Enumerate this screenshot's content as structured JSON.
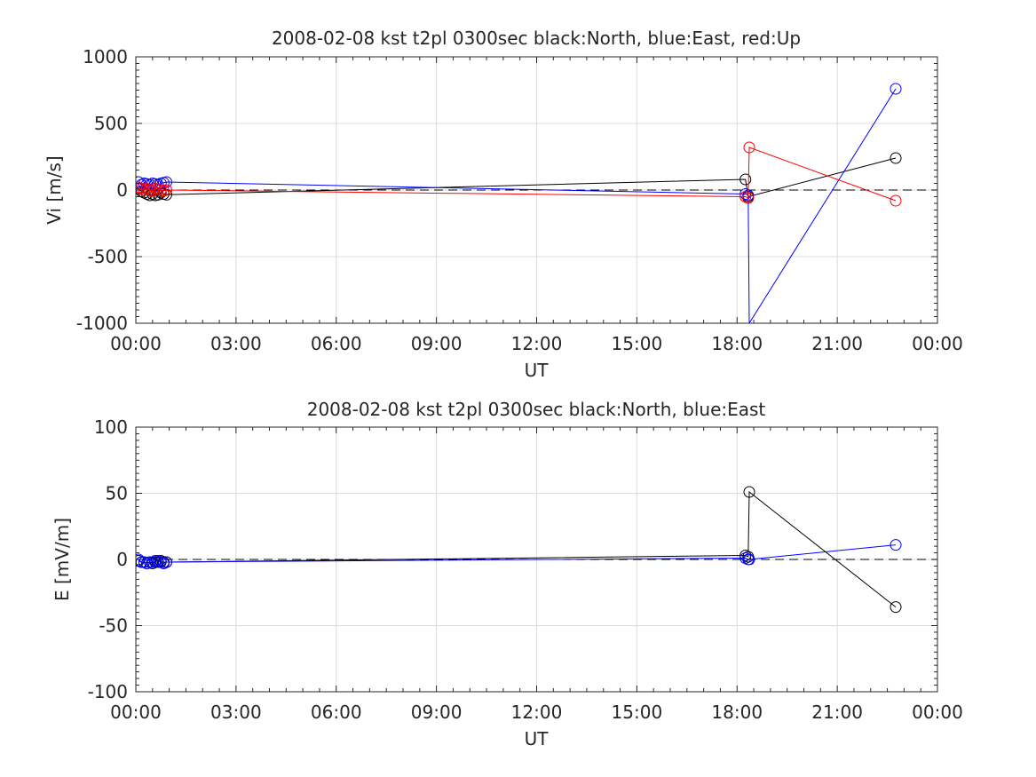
{
  "chart_data": [
    {
      "type": "line",
      "title": "2008-02-08 kst t2pl 0300sec black:North, blue:East, red:Up",
      "xlabel": "UT",
      "ylabel": "Vi [m/s]",
      "xlim": [
        "00:00",
        "24:00"
      ],
      "ylim": [
        -1000,
        1000
      ],
      "xticks": [
        "00:00",
        "03:00",
        "06:00",
        "09:00",
        "12:00",
        "15:00",
        "18:00",
        "21:00",
        "00:00"
      ],
      "yticks": [
        "1000",
        "500",
        "0",
        "-500",
        "-1000"
      ],
      "ytick_values": [
        1000,
        500,
        0,
        -500,
        -1000
      ],
      "grid": true,
      "zero_line": "dashed",
      "series": [
        {
          "name": "North",
          "color": "#000000",
          "marker": "circle",
          "points": [
            [
              "00:05",
              10
            ],
            [
              "00:10",
              -10
            ],
            [
              "00:15",
              -20
            ],
            [
              "00:20",
              -30
            ],
            [
              "00:25",
              -40
            ],
            [
              "00:30",
              -30
            ],
            [
              "00:35",
              -40
            ],
            [
              "00:40",
              -35
            ],
            [
              "00:45",
              -20
            ],
            [
              "00:50",
              -30
            ],
            [
              "00:55",
              -35
            ],
            [
              "18:15",
              80
            ],
            [
              "18:20",
              -50
            ],
            [
              "22:45",
              240
            ]
          ]
        },
        {
          "name": "East",
          "color": "#0000ff",
          "marker": "circle",
          "points": [
            [
              "00:05",
              60
            ],
            [
              "00:10",
              40
            ],
            [
              "00:15",
              50
            ],
            [
              "00:20",
              45
            ],
            [
              "00:25",
              40
            ],
            [
              "00:30",
              50
            ],
            [
              "00:35",
              45
            ],
            [
              "00:40",
              40
            ],
            [
              "00:45",
              50
            ],
            [
              "00:50",
              55
            ],
            [
              "00:55",
              60
            ],
            [
              "18:15",
              -30
            ],
            [
              "18:20",
              -40
            ],
            [
              "18:22",
              -1000
            ],
            [
              "22:45",
              760
            ]
          ],
          "hidden_markers": [
            13
          ]
        },
        {
          "name": "Up",
          "color": "#ff0000",
          "marker": "circle",
          "points": [
            [
              "00:05",
              20
            ],
            [
              "00:10",
              10
            ],
            [
              "00:15",
              0
            ],
            [
              "00:20",
              10
            ],
            [
              "00:25",
              0
            ],
            [
              "00:30",
              -5
            ],
            [
              "00:35",
              10
            ],
            [
              "00:40",
              5
            ],
            [
              "00:45",
              0
            ],
            [
              "00:50",
              -5
            ],
            [
              "00:55",
              0
            ],
            [
              "18:15",
              -50
            ],
            [
              "18:20",
              -60
            ],
            [
              "18:22",
              320
            ],
            [
              "22:45",
              -80
            ]
          ]
        }
      ]
    },
    {
      "type": "line",
      "title": "2008-02-08 kst t2pl 0300sec black:North, blue:East",
      "xlabel": "UT",
      "ylabel": "E [mV/m]",
      "xlim": [
        "00:00",
        "24:00"
      ],
      "ylim": [
        -100,
        100
      ],
      "xticks": [
        "00:00",
        "03:00",
        "06:00",
        "09:00",
        "12:00",
        "15:00",
        "18:00",
        "21:00",
        "00:00"
      ],
      "yticks": [
        "100",
        "50",
        "0",
        "-50",
        "-100"
      ],
      "ytick_values": [
        100,
        50,
        0,
        -50,
        -100
      ],
      "grid": true,
      "zero_line": "dashed",
      "series": [
        {
          "name": "North",
          "color": "#000000",
          "marker": "circle",
          "points": [
            [
              "00:05",
              -1
            ],
            [
              "00:10",
              -2
            ],
            [
              "00:15",
              -2
            ],
            [
              "00:20",
              -3
            ],
            [
              "00:25",
              -2
            ],
            [
              "00:30",
              -3
            ],
            [
              "00:35",
              -2
            ],
            [
              "00:40",
              -2
            ],
            [
              "00:45",
              -1
            ],
            [
              "00:50",
              -2
            ],
            [
              "00:55",
              -2
            ],
            [
              "18:15",
              3
            ],
            [
              "18:20",
              2
            ],
            [
              "18:22",
              51
            ],
            [
              "22:45",
              -36
            ]
          ]
        },
        {
          "name": "East",
          "color": "#0000ff",
          "marker": "circle",
          "points": [
            [
              "00:05",
              0
            ],
            [
              "00:10",
              -2
            ],
            [
              "00:15",
              -2
            ],
            [
              "00:20",
              -3
            ],
            [
              "00:25",
              -2
            ],
            [
              "00:30",
              -2
            ],
            [
              "00:35",
              -1
            ],
            [
              "00:40",
              -1
            ],
            [
              "00:45",
              -2
            ],
            [
              "00:50",
              -3
            ],
            [
              "00:55",
              -2
            ],
            [
              "18:15",
              1
            ],
            [
              "18:20",
              0
            ],
            [
              "18:22",
              0
            ],
            [
              "22:45",
              11
            ]
          ]
        }
      ]
    }
  ]
}
